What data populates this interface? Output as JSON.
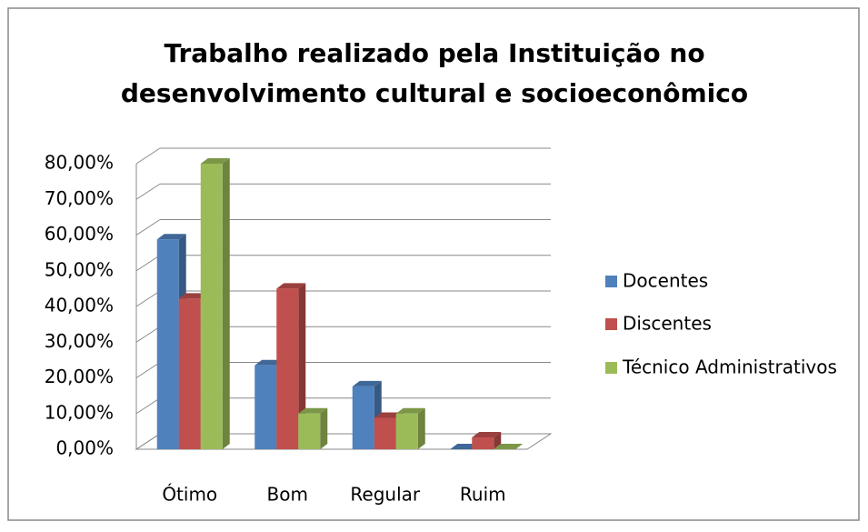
{
  "chart_data": {
    "type": "bar3d",
    "title": [
      "Trabalho realizado pela Instituição no",
      "desenvolvimento cultural e socioeconômico"
    ],
    "categories": [
      "Ótimo",
      "Bom",
      "Regular",
      "Ruim"
    ],
    "series": [
      {
        "name": "Docentes",
        "color": "#4f81bd",
        "values": [
          58.8,
          23.5,
          17.6,
          0
        ]
      },
      {
        "name": "Discentes",
        "color": "#c0504d",
        "values": [
          42.2,
          45,
          8.8,
          3.3
        ]
      },
      {
        "name": "Técnico Administrativos",
        "color": "#9bbb59",
        "values": [
          80,
          10,
          10,
          0
        ]
      }
    ],
    "ylim": [
      0,
      80
    ],
    "yticks": [
      {
        "value": 0,
        "label": "0,00%"
      },
      {
        "value": 10,
        "label": "10,00%"
      },
      {
        "value": 20,
        "label": "20,00%"
      },
      {
        "value": 30,
        "label": "30,00%"
      },
      {
        "value": 40,
        "label": "40,00%"
      },
      {
        "value": 50,
        "label": "50,00%"
      },
      {
        "value": 60,
        "label": "60,00%"
      },
      {
        "value": 70,
        "label": "70,00%"
      },
      {
        "value": 80,
        "label": "80,00%"
      }
    ],
    "grid": true,
    "legend": "right"
  }
}
